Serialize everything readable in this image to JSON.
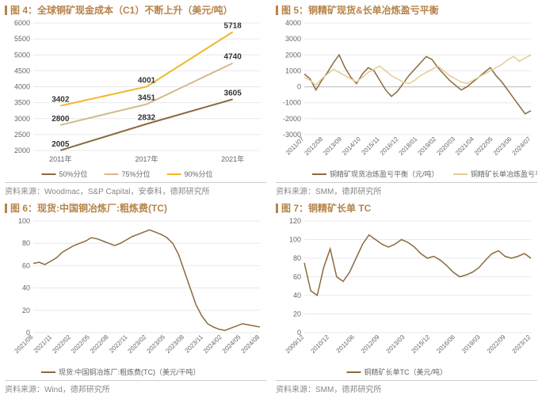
{
  "panels": [
    {
      "title": "图 4：全球铜矿现金成本（C1）不断上升（美元/吨）",
      "source": "资料来源：Woodmac，S&P Capital，安泰科，德邦研究所",
      "chart": {
        "type": "line",
        "background_color": "#ffffff",
        "grid_color": "#e8e8e8",
        "ylim": [
          2000,
          6000
        ],
        "ytick_step": 500,
        "categories": [
          "2011年",
          "2017年",
          "2021年"
        ],
        "series": [
          {
            "name": "50%分位",
            "color": "#8a6a3f",
            "values": [
              2005,
              2832,
              3605
            ]
          },
          {
            "name": "75%分位",
            "color": "#d4b98a",
            "values": [
              2800,
              3451,
              4740
            ]
          },
          {
            "name": "90%分位",
            "color": "#f0b82a",
            "values": [
              3402,
              4001,
              5718
            ]
          }
        ],
        "line_width": 2,
        "label_fontsize": 10
      }
    },
    {
      "title": "图 5：铜精矿现货&长单冶炼盈亏平衡",
      "source": "资料来源：SMM，德邦研究所",
      "chart": {
        "type": "line",
        "background_color": "#ffffff",
        "grid_color": "#e8e8e8",
        "ylim": [
          -3000,
          4000
        ],
        "ytick_step": 1000,
        "x_labels": [
          "2011/07",
          "2012/08",
          "2013/09",
          "2014/10",
          "2015/11",
          "2016/12",
          "2018/01",
          "2019/02",
          "2020/03",
          "2021/04",
          "2022/05",
          "2023/06",
          "2024/07"
        ],
        "series": [
          {
            "name": "铜精矿现货冶炼盈亏平衡（元/吨）",
            "color": "#8a6a3f",
            "values": [
              800,
              500,
              -200,
              400,
              900,
              1500,
              2000,
              1200,
              600,
              200,
              800,
              1200,
              1000,
              400,
              -200,
              -600,
              -300,
              200,
              700,
              1100,
              1500,
              1900,
              1700,
              1200,
              800,
              400,
              100,
              -200,
              0,
              300,
              600,
              900,
              1200,
              700,
              300,
              -200,
              -700,
              -1200,
              -1700,
              -1500
            ]
          },
          {
            "name": "铜精矿长单冶炼盈亏平衡（元/吨）",
            "color": "#e2cd96",
            "values": [
              600,
              400,
              100,
              500,
              800,
              1100,
              900,
              700,
              500,
              300,
              600,
              900,
              1100,
              1300,
              1000,
              700,
              500,
              300,
              200,
              400,
              700,
              900,
              1100,
              1300,
              1000,
              700,
              500,
              300,
              200,
              400,
              600,
              800,
              1000,
              1200,
              1400,
              1700,
              1900,
              1600,
              1800,
              2000
            ]
          }
        ],
        "line_width": 1.5
      }
    },
    {
      "title": "图 6：现货:中国铜冶炼厂:粗炼费(TC)",
      "source": "资料来源：Wind，德邦研究所",
      "chart": {
        "type": "line",
        "background_color": "#ffffff",
        "grid_color": "#e8e8e8",
        "ylim": [
          0,
          100
        ],
        "ytick_step": 20,
        "x_labels": [
          "2021/08",
          "2021/11",
          "2022/02",
          "2022/05",
          "2022/08",
          "2022/11",
          "2023/02",
          "2023/05",
          "2023/08",
          "2023/11",
          "2024/02",
          "2024/05",
          "2024/08"
        ],
        "series": [
          {
            "name": "现货:中国铜冶炼厂:粗炼费(TC)（美元/干吨）",
            "color": "#8a6a3f",
            "values": [
              62,
              63,
              61,
              64,
              67,
              72,
              75,
              78,
              80,
              82,
              85,
              84,
              82,
              80,
              78,
              80,
              83,
              86,
              88,
              90,
              92,
              90,
              88,
              85,
              80,
              70,
              55,
              40,
              25,
              15,
              8,
              5,
              3,
              2,
              4,
              6,
              8,
              7,
              6,
              5
            ]
          }
        ],
        "line_width": 1.5
      }
    },
    {
      "title": "图 7：铜精矿长单 TC",
      "source": "资料来源：SMM，德邦研究所",
      "chart": {
        "type": "line",
        "background_color": "#ffffff",
        "grid_color": "#e8e8e8",
        "ylim": [
          0,
          120
        ],
        "ytick_step": 20,
        "x_labels": [
          "2009/12",
          "2010/12",
          "2011/06",
          "2012/09",
          "2013/03",
          "2015/12",
          "2016/06",
          "2019/03",
          "2022/09",
          "2023/12"
        ],
        "series": [
          {
            "name": "铜精矿长单TC（美元/吨）",
            "color": "#8a6a3f",
            "values": [
              75,
              45,
              40,
              70,
              90,
              60,
              55,
              65,
              80,
              95,
              105,
              100,
              95,
              92,
              95,
              100,
              97,
              92,
              85,
              80,
              82,
              78,
              72,
              65,
              60,
              62,
              65,
              70,
              78,
              85,
              88,
              82,
              80,
              82,
              85,
              80
            ]
          }
        ],
        "line_width": 1.5
      }
    }
  ],
  "colors": {
    "accent": "#b6844a",
    "source_text": "#888888",
    "axis_text": "#666666",
    "grid": "#e8e8e8"
  }
}
